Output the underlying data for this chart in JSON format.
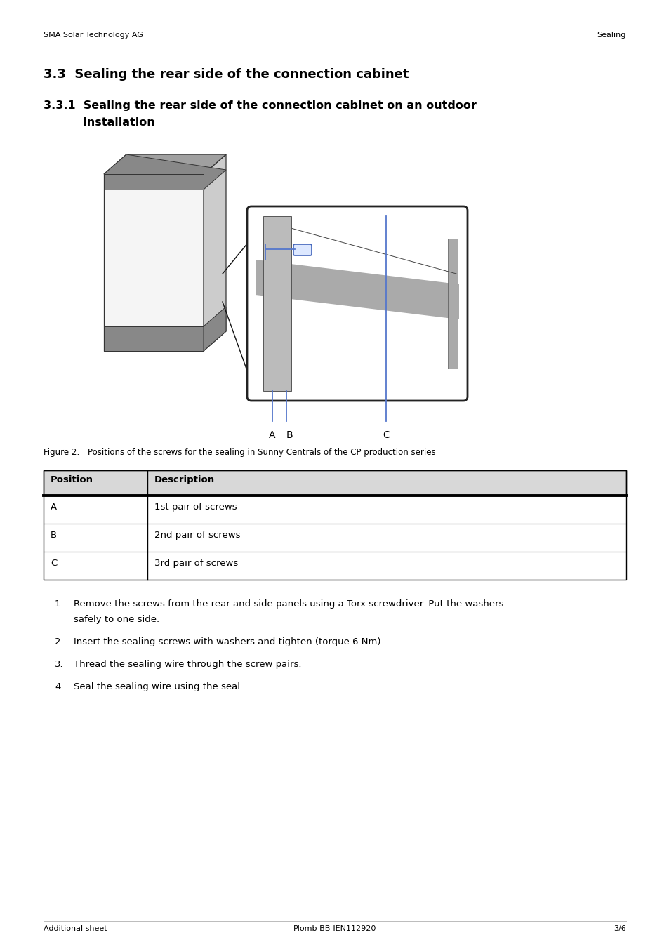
{
  "header_left": "SMA Solar Technology AG",
  "header_right": "Sealing",
  "title_33": "3.3  Sealing the rear side of the connection cabinet",
  "title_331_line1": "3.3.1  Sealing the rear side of the connection cabinet on an outdoor",
  "title_331_line2": "          installation",
  "figure_caption_label": "Figure 2:",
  "figure_caption_text": "Positions of the screws for the sealing in Sunny Centrals of the CP production series",
  "table_headers": [
    "Position",
    "Description"
  ],
  "table_rows": [
    [
      "A",
      "1st pair of screws"
    ],
    [
      "B",
      "2nd pair of screws"
    ],
    [
      "C",
      "3rd pair of screws"
    ]
  ],
  "numbered_items": [
    [
      "Remove the screws from the rear and side panels using a Torx screwdriver. Put the washers",
      "safely to one side."
    ],
    [
      "Insert the sealing screws with washers and tighten (torque 6 Nm)."
    ],
    [
      "Thread the sealing wire through the screw pairs."
    ],
    [
      "Seal the sealing wire using the seal."
    ]
  ],
  "footer_left": "Additional sheet",
  "footer_center": "Plomb-BB-IEN112920",
  "footer_right": "3/6",
  "bg_color": "#ffffff",
  "text_color": "#000000"
}
